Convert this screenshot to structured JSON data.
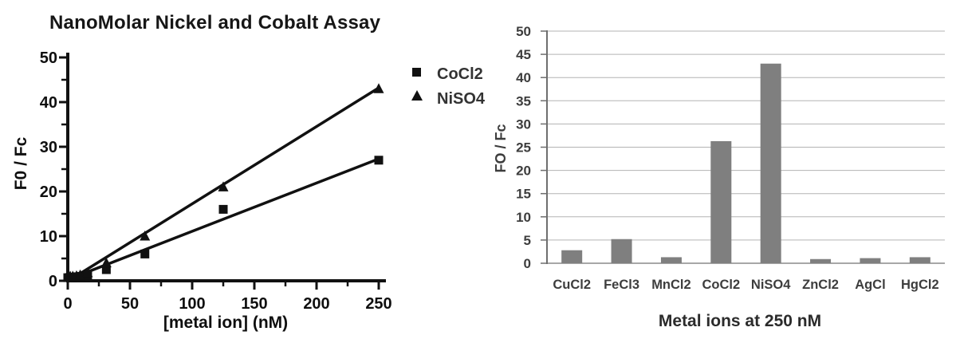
{
  "figure_title": "NanoMolar Nickel and Cobalt Assay",
  "chart_data": [
    {
      "type": "scatter",
      "title": "NanoMolar Nickel and Cobalt Assay",
      "xlabel": "[metal ion] (nM)",
      "ylabel": "F0 / Fc",
      "xlim": [
        0,
        250
      ],
      "ylim": [
        0,
        50
      ],
      "x_ticks": [
        0,
        50,
        100,
        150,
        200,
        250
      ],
      "y_ticks": [
        0,
        10,
        20,
        30,
        40,
        50
      ],
      "x_minor_step": 25,
      "y_minor_step": 5,
      "grid": false,
      "legend_position": "right-of-plot",
      "legend": [
        {
          "label": "CoCl2",
          "marker": "square"
        },
        {
          "label": "NiSO4",
          "marker": "triangle"
        }
      ],
      "series": [
        {
          "name": "CoCl2",
          "marker": "square",
          "x": [
            0,
            2,
            4,
            7,
            10,
            16,
            31,
            62,
            125,
            250
          ],
          "y": [
            0.7,
            0.8,
            0.8,
            0.9,
            1.0,
            1.2,
            2.5,
            6,
            16,
            27
          ],
          "fit_line": {
            "x": [
              4,
              250
            ],
            "y": [
              0.7,
              27.3
            ]
          }
        },
        {
          "name": "NiSO4",
          "marker": "triangle",
          "x": [
            0,
            2,
            4,
            7,
            10,
            16,
            31,
            62,
            125,
            250
          ],
          "y": [
            0.9,
            1.0,
            1.0,
            1.1,
            1.3,
            1.8,
            4,
            10,
            21,
            43
          ],
          "fit_line": {
            "x": [
              4,
              250
            ],
            "y": [
              0.6,
              43.2
            ]
          }
        }
      ],
      "colors": {
        "marker": "#111111",
        "line": "#111111",
        "text": "#111111"
      }
    },
    {
      "type": "bar",
      "categories": [
        "CuCl2",
        "FeCl3",
        "MnCl2",
        "CoCl2",
        "NiSO4",
        "ZnCl2",
        "AgCl",
        "HgCl2"
      ],
      "values": [
        2.8,
        5.2,
        1.3,
        26.3,
        43,
        0.9,
        1.1,
        1.3
      ],
      "title": "",
      "xlabel": "Metal ions at 250 nM",
      "ylabel": "FO / Fc",
      "ylim": [
        0,
        50
      ],
      "y_tick_step": 5,
      "grid": true,
      "legend_position": "none",
      "colors": {
        "bar": "#7f7f7f",
        "gridline": "#b3b3b3",
        "axis": "#6e6e6e",
        "text": "#3d3d3d"
      }
    }
  ]
}
